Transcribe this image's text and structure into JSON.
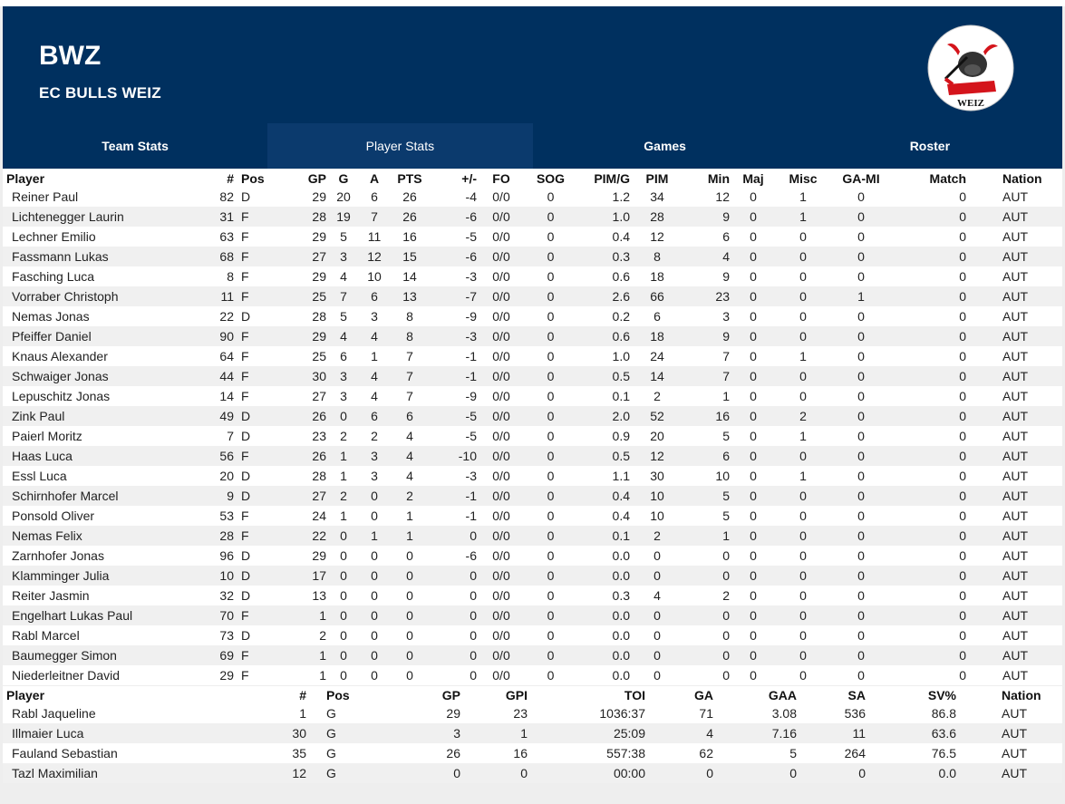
{
  "team": {
    "abbr": "BWZ",
    "name": "EC BULLS WEIZ"
  },
  "logo": {
    "label": "WEIZ",
    "accent": "#d4141b"
  },
  "tabs": [
    {
      "label": "Team Stats",
      "active": false
    },
    {
      "label": "Player Stats",
      "active": true
    },
    {
      "label": "Games",
      "active": false
    },
    {
      "label": "Roster",
      "active": false
    }
  ],
  "colors": {
    "header_bg": "#00305f",
    "active_tab_bg": "#0b3a6d"
  },
  "skaters": {
    "headers": [
      "Player",
      "#",
      "Pos",
      "GP",
      "G",
      "A",
      "PTS",
      "+/-",
      "FO",
      "SOG",
      "PIM/G",
      "PIM",
      "Min",
      "Maj",
      "Misc",
      "GA-MI",
      "Match",
      "Nation"
    ],
    "rows": [
      [
        "Reiner Paul",
        "82",
        "D",
        "29",
        "20",
        "6",
        "26",
        "-4",
        "0/0",
        "0",
        "1.2",
        "34",
        "12",
        "0",
        "1",
        "0",
        "0",
        "AUT"
      ],
      [
        "Lichtenegger Laurin",
        "31",
        "F",
        "28",
        "19",
        "7",
        "26",
        "-6",
        "0/0",
        "0",
        "1.0",
        "28",
        "9",
        "0",
        "1",
        "0",
        "0",
        "AUT"
      ],
      [
        "Lechner Emilio",
        "63",
        "F",
        "29",
        "5",
        "11",
        "16",
        "-5",
        "0/0",
        "0",
        "0.4",
        "12",
        "6",
        "0",
        "0",
        "0",
        "0",
        "AUT"
      ],
      [
        "Fassmann Lukas",
        "68",
        "F",
        "27",
        "3",
        "12",
        "15",
        "-6",
        "0/0",
        "0",
        "0.3",
        "8",
        "4",
        "0",
        "0",
        "0",
        "0",
        "AUT"
      ],
      [
        "Fasching Luca",
        "8",
        "F",
        "29",
        "4",
        "10",
        "14",
        "-3",
        "0/0",
        "0",
        "0.6",
        "18",
        "9",
        "0",
        "0",
        "0",
        "0",
        "AUT"
      ],
      [
        "Vorraber Christoph",
        "11",
        "F",
        "25",
        "7",
        "6",
        "13",
        "-7",
        "0/0",
        "0",
        "2.6",
        "66",
        "23",
        "0",
        "0",
        "1",
        "0",
        "AUT"
      ],
      [
        "Nemas Jonas",
        "22",
        "D",
        "28",
        "5",
        "3",
        "8",
        "-9",
        "0/0",
        "0",
        "0.2",
        "6",
        "3",
        "0",
        "0",
        "0",
        "0",
        "AUT"
      ],
      [
        "Pfeiffer Daniel",
        "90",
        "F",
        "29",
        "4",
        "4",
        "8",
        "-3",
        "0/0",
        "0",
        "0.6",
        "18",
        "9",
        "0",
        "0",
        "0",
        "0",
        "AUT"
      ],
      [
        "Knaus Alexander",
        "64",
        "F",
        "25",
        "6",
        "1",
        "7",
        "-1",
        "0/0",
        "0",
        "1.0",
        "24",
        "7",
        "0",
        "1",
        "0",
        "0",
        "AUT"
      ],
      [
        "Schwaiger Jonas",
        "44",
        "F",
        "30",
        "3",
        "4",
        "7",
        "-1",
        "0/0",
        "0",
        "0.5",
        "14",
        "7",
        "0",
        "0",
        "0",
        "0",
        "AUT"
      ],
      [
        "Lepuschitz Jonas",
        "14",
        "F",
        "27",
        "3",
        "4",
        "7",
        "-9",
        "0/0",
        "0",
        "0.1",
        "2",
        "1",
        "0",
        "0",
        "0",
        "0",
        "AUT"
      ],
      [
        "Zink Paul",
        "49",
        "D",
        "26",
        "0",
        "6",
        "6",
        "-5",
        "0/0",
        "0",
        "2.0",
        "52",
        "16",
        "0",
        "2",
        "0",
        "0",
        "AUT"
      ],
      [
        "Paierl Moritz",
        "7",
        "D",
        "23",
        "2",
        "2",
        "4",
        "-5",
        "0/0",
        "0",
        "0.9",
        "20",
        "5",
        "0",
        "1",
        "0",
        "0",
        "AUT"
      ],
      [
        "Haas Luca",
        "56",
        "F",
        "26",
        "1",
        "3",
        "4",
        "-10",
        "0/0",
        "0",
        "0.5",
        "12",
        "6",
        "0",
        "0",
        "0",
        "0",
        "AUT"
      ],
      [
        "Essl Luca",
        "20",
        "D",
        "28",
        "1",
        "3",
        "4",
        "-3",
        "0/0",
        "0",
        "1.1",
        "30",
        "10",
        "0",
        "1",
        "0",
        "0",
        "AUT"
      ],
      [
        "Schirnhofer Marcel",
        "9",
        "D",
        "27",
        "2",
        "0",
        "2",
        "-1",
        "0/0",
        "0",
        "0.4",
        "10",
        "5",
        "0",
        "0",
        "0",
        "0",
        "AUT"
      ],
      [
        "Ponsold Oliver",
        "53",
        "F",
        "24",
        "1",
        "0",
        "1",
        "-1",
        "0/0",
        "0",
        "0.4",
        "10",
        "5",
        "0",
        "0",
        "0",
        "0",
        "AUT"
      ],
      [
        "Nemas Felix",
        "28",
        "F",
        "22",
        "0",
        "1",
        "1",
        "0",
        "0/0",
        "0",
        "0.1",
        "2",
        "1",
        "0",
        "0",
        "0",
        "0",
        "AUT"
      ],
      [
        "Zarnhofer Jonas",
        "96",
        "D",
        "29",
        "0",
        "0",
        "0",
        "-6",
        "0/0",
        "0",
        "0.0",
        "0",
        "0",
        "0",
        "0",
        "0",
        "0",
        "AUT"
      ],
      [
        "Klamminger Julia",
        "10",
        "D",
        "17",
        "0",
        "0",
        "0",
        "0",
        "0/0",
        "0",
        "0.0",
        "0",
        "0",
        "0",
        "0",
        "0",
        "0",
        "AUT"
      ],
      [
        "Reiter Jasmin",
        "32",
        "D",
        "13",
        "0",
        "0",
        "0",
        "0",
        "0/0",
        "0",
        "0.3",
        "4",
        "2",
        "0",
        "0",
        "0",
        "0",
        "AUT"
      ],
      [
        "Engelhart Lukas Paul",
        "70",
        "F",
        "1",
        "0",
        "0",
        "0",
        "0",
        "0/0",
        "0",
        "0.0",
        "0",
        "0",
        "0",
        "0",
        "0",
        "0",
        "AUT"
      ],
      [
        "Rabl Marcel",
        "73",
        "D",
        "2",
        "0",
        "0",
        "0",
        "0",
        "0/0",
        "0",
        "0.0",
        "0",
        "0",
        "0",
        "0",
        "0",
        "0",
        "AUT"
      ],
      [
        "Baumegger Simon",
        "69",
        "F",
        "1",
        "0",
        "0",
        "0",
        "0",
        "0/0",
        "0",
        "0.0",
        "0",
        "0",
        "0",
        "0",
        "0",
        "0",
        "AUT"
      ],
      [
        "Niederleitner David",
        "29",
        "F",
        "1",
        "0",
        "0",
        "0",
        "0",
        "0/0",
        "0",
        "0.0",
        "0",
        "0",
        "0",
        "0",
        "0",
        "0",
        "AUT"
      ]
    ]
  },
  "goalies": {
    "headers": [
      "Player",
      "#",
      "Pos",
      "GP",
      "GPI",
      "TOI",
      "GA",
      "GAA",
      "SA",
      "SV%",
      "Nation"
    ],
    "rows": [
      [
        "Rabl Jaqueline",
        "1",
        "G",
        "29",
        "23",
        "1036:37",
        "71",
        "3.08",
        "536",
        "86.8",
        "AUT"
      ],
      [
        "Illmaier Luca",
        "30",
        "G",
        "3",
        "1",
        "25:09",
        "4",
        "7.16",
        "11",
        "63.6",
        "AUT"
      ],
      [
        "Fauland Sebastian",
        "35",
        "G",
        "26",
        "16",
        "557:38",
        "62",
        "5",
        "264",
        "76.5",
        "AUT"
      ],
      [
        "Tazl Maximilian",
        "12",
        "G",
        "0",
        "0",
        "00:00",
        "0",
        "0",
        "0",
        "0.0",
        "AUT"
      ]
    ]
  }
}
